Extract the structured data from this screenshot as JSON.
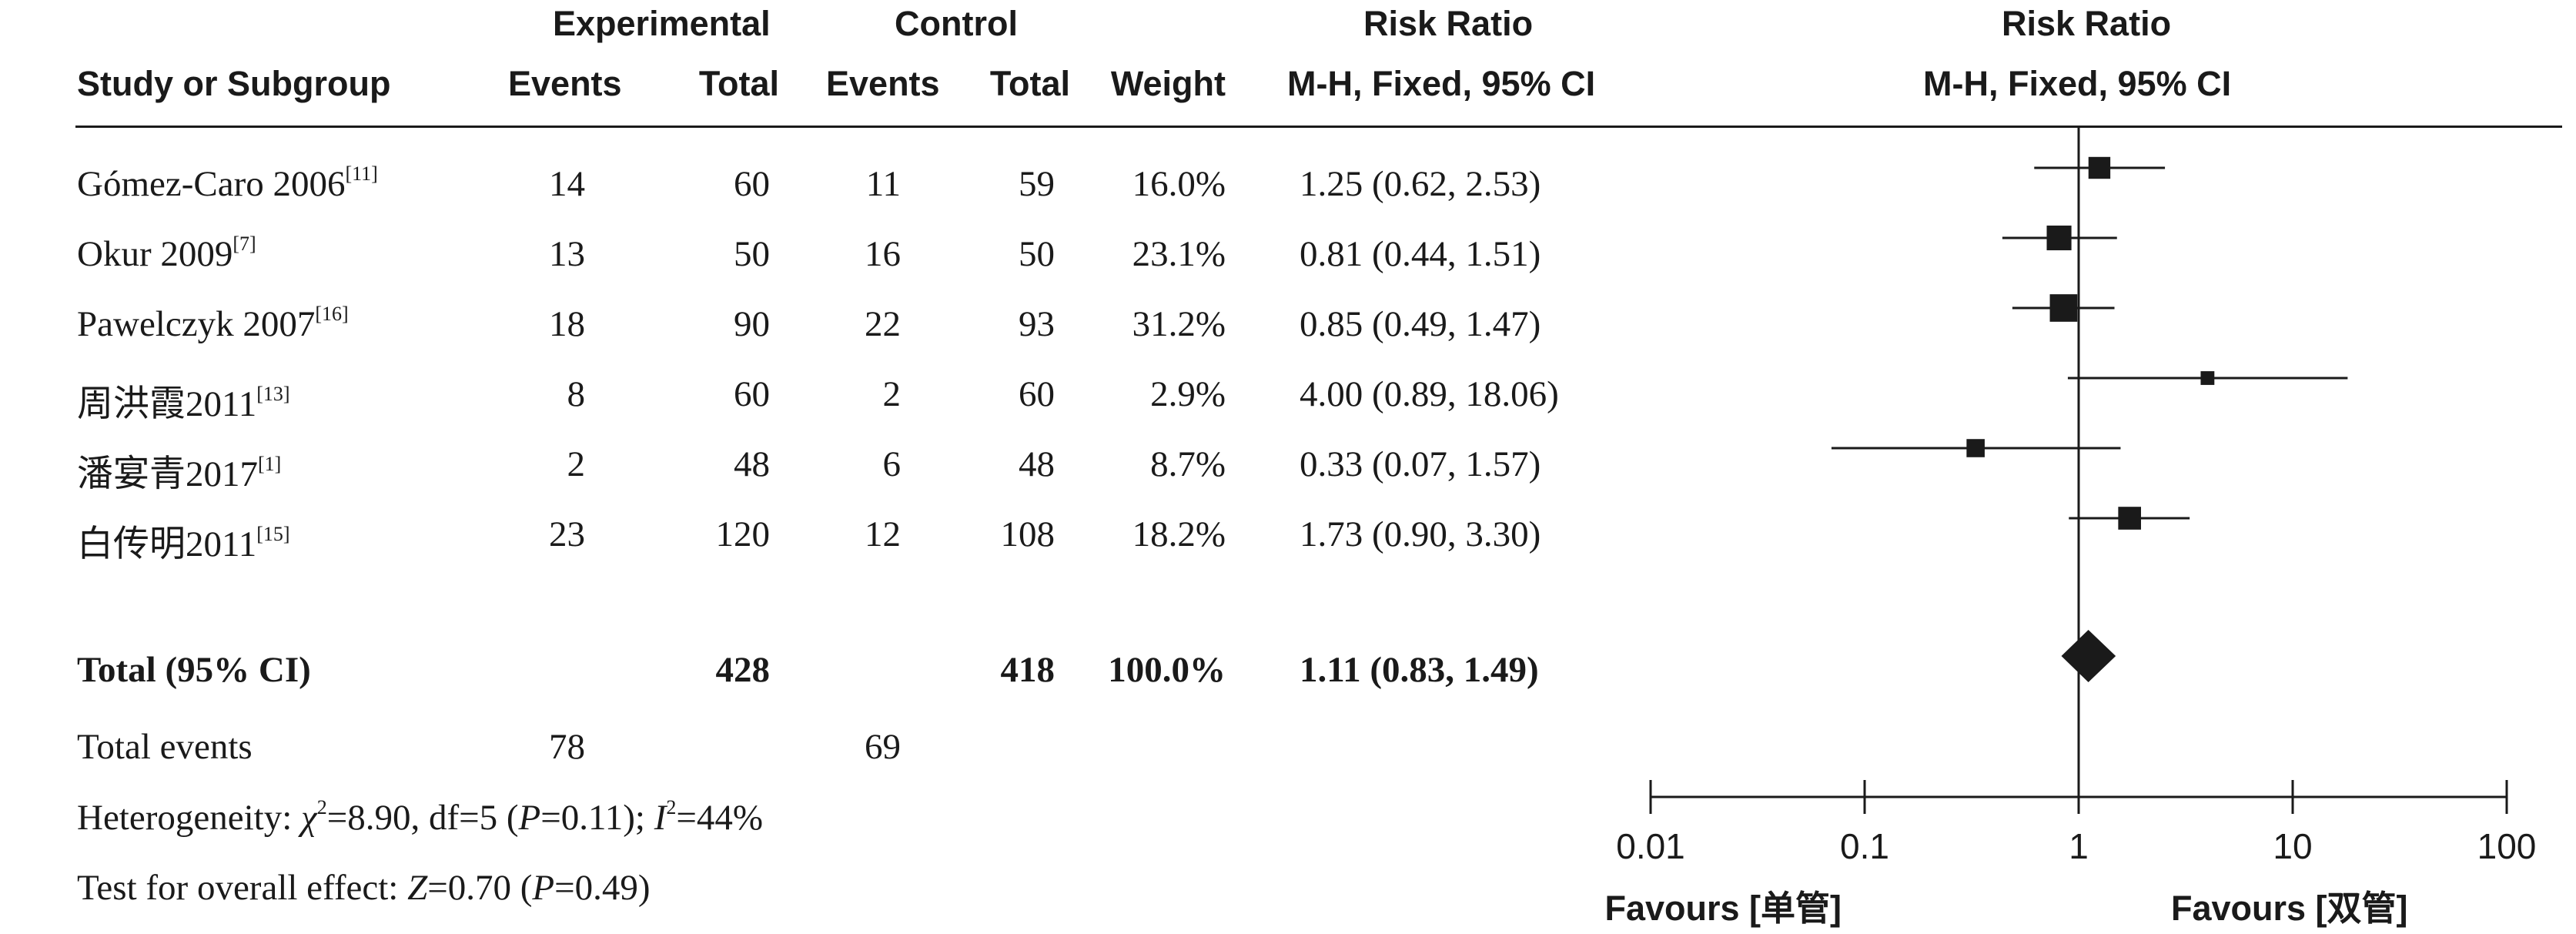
{
  "headers": {
    "experimental": "Experimental",
    "control": "Control",
    "risk_ratio": "Risk Ratio",
    "study": "Study or Subgroup",
    "events": "Events",
    "total": "Total",
    "weight": "Weight",
    "method": "M-H, Fixed, 95% CI",
    "plot_title": "Risk Ratio",
    "plot_method": "M-H, Fixed, 95% CI"
  },
  "studies": [
    {
      "name": "Gómez-Caro 2006",
      "ref": "[11]",
      "exp_events": "14",
      "exp_total": "60",
      "ctl_events": "11",
      "ctl_total": "59",
      "weight": "16.0%",
      "ci": "1.25 (0.62, 2.53)"
    },
    {
      "name": "Okur 2009",
      "ref": "[7]",
      "exp_events": "13",
      "exp_total": "50",
      "ctl_events": "16",
      "ctl_total": "50",
      "weight": "23.1%",
      "ci": "0.81 (0.44, 1.51)"
    },
    {
      "name": "Pawelczyk 2007",
      "ref": "[16]",
      "exp_events": "18",
      "exp_total": "90",
      "ctl_events": "22",
      "ctl_total": "93",
      "weight": "31.2%",
      "ci": "0.85 (0.49, 1.47)"
    },
    {
      "name": "周洪霞2011",
      "ref": "[13]",
      "exp_events": "8",
      "exp_total": "60",
      "ctl_events": "2",
      "ctl_total": "60",
      "weight": "2.9%",
      "ci": "4.00 (0.89, 18.06)"
    },
    {
      "name": "潘宴青2017",
      "ref": "[1]",
      "exp_events": "2",
      "exp_total": "48",
      "ctl_events": "6",
      "ctl_total": "48",
      "weight": "8.7%",
      "ci": "0.33 (0.07, 1.57)"
    },
    {
      "name": "白传明2011",
      "ref": "[15]",
      "exp_events": "23",
      "exp_total": "120",
      "ctl_events": "12",
      "ctl_total": "108",
      "weight": "18.2%",
      "ci": "1.73 (0.90, 3.30)"
    }
  ],
  "total": {
    "label": "Total (95% CI)",
    "exp_total": "428",
    "ctl_total": "418",
    "weight": "100.0%",
    "ci": "1.11 (0.83, 1.49)"
  },
  "total_events": {
    "label": "Total events",
    "exp": "78",
    "ctl": "69"
  },
  "heterogeneity": {
    "prefix": "Heterogeneity: ",
    "chi_sym": "χ",
    "chi_sup": "2",
    "chi_rest": "=8.90, df=5 (",
    "p_sym": "P",
    "p_rest": "=0.11); ",
    "i_sym": "I",
    "i_sup": "2",
    "i_rest": "=44%"
  },
  "overall": {
    "prefix": "Test for overall effect: ",
    "z_sym": "Z",
    "z_rest": "=0.70 (",
    "p_sym": "P",
    "p_rest": "=0.49)"
  },
  "chart_data": {
    "type": "forest",
    "x_scale": "log",
    "xlim": [
      0.01,
      100
    ],
    "x_ticks": [
      0.01,
      0.1,
      1,
      10,
      100
    ],
    "x_tick_labels": [
      "0.01",
      "0.1",
      "1",
      "10",
      "100"
    ],
    "reference_line": 1,
    "favours_left": "Favours [单管]",
    "favours_right": "Favours [双管]",
    "points": [
      {
        "study": "Gómez-Caro 2006",
        "rr": 1.25,
        "lower": 0.62,
        "upper": 2.53,
        "weight": 16.0
      },
      {
        "study": "Okur 2009",
        "rr": 0.81,
        "lower": 0.44,
        "upper": 1.51,
        "weight": 23.1
      },
      {
        "study": "Pawelczyk 2007",
        "rr": 0.85,
        "lower": 0.49,
        "upper": 1.47,
        "weight": 31.2
      },
      {
        "study": "周洪霞2011",
        "rr": 4.0,
        "lower": 0.89,
        "upper": 18.06,
        "weight": 2.9
      },
      {
        "study": "潘宴青2017",
        "rr": 0.33,
        "lower": 0.07,
        "upper": 1.57,
        "weight": 8.7
      },
      {
        "study": "白传明2011",
        "rr": 1.73,
        "lower": 0.9,
        "upper": 3.3,
        "weight": 18.2
      }
    ],
    "pooled": {
      "rr": 1.11,
      "lower": 0.83,
      "upper": 1.49
    }
  }
}
